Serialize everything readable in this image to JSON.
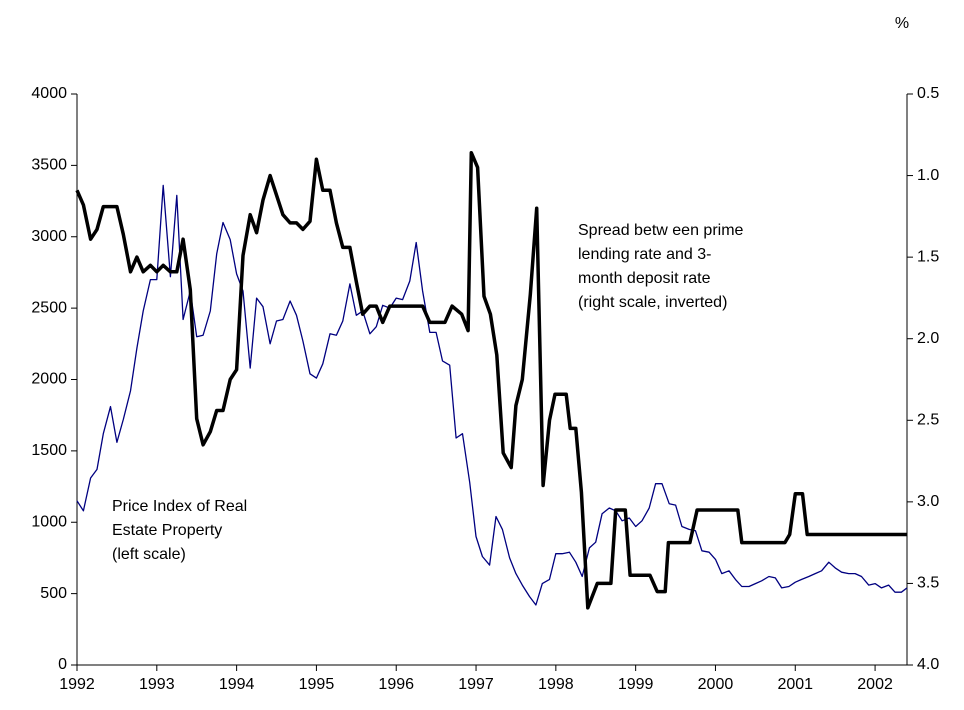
{
  "chart_data": {
    "type": "line",
    "y2_unit": "%",
    "annotations": [
      {
        "lines": [
          "Spread betw een prime",
          "lending rate and 3-",
          "month deposit rate",
          "(right scale, inverted)"
        ]
      },
      {
        "lines": [
          "Price Index of Real",
          "Estate Property",
          "(left scale)"
        ]
      }
    ],
    "xlim": [
      1992,
      2002.4
    ],
    "xticks": [
      1992,
      1993,
      1994,
      1995,
      1996,
      1997,
      1998,
      1999,
      2000,
      2001,
      2002
    ],
    "ylim": [
      0,
      4000
    ],
    "yticks": [
      0,
      500,
      1000,
      1500,
      2000,
      2500,
      3000,
      3500,
      4000
    ],
    "y2lim": [
      4.0,
      0.5
    ],
    "y2_inverted": true,
    "y2ticks": [
      {
        "value": 0.5,
        "label": "0.5"
      },
      {
        "value": 1.0,
        "label": "1.0"
      },
      {
        "value": 1.5,
        "label": "1.5"
      },
      {
        "value": 2.0,
        "label": "2.0"
      },
      {
        "value": 2.5,
        "label": "2.5"
      },
      {
        "value": 3.0,
        "label": "3.0"
      },
      {
        "value": 3.5,
        "label": "3.5"
      },
      {
        "value": 4.0,
        "label": "4.0"
      }
    ],
    "grid": false,
    "series": [
      {
        "color": "#000080",
        "width": 1.3,
        "x": [
          1992.0,
          1992.08,
          1992.17,
          1992.25,
          1992.33,
          1992.42,
          1992.5,
          1992.58,
          1992.67,
          1992.75,
          1992.83,
          1992.92,
          1993.0,
          1993.08,
          1993.17,
          1993.25,
          1993.33,
          1993.42,
          1993.5,
          1993.58,
          1993.67,
          1993.75,
          1993.83,
          1993.92,
          1994.0,
          1994.08,
          1994.17,
          1994.25,
          1994.33,
          1994.42,
          1994.5,
          1994.58,
          1994.67,
          1994.75,
          1994.83,
          1994.92,
          1995.0,
          1995.08,
          1995.17,
          1995.25,
          1995.33,
          1995.42,
          1995.5,
          1995.58,
          1995.67,
          1995.75,
          1995.83,
          1995.92,
          1996.0,
          1996.08,
          1996.17,
          1996.25,
          1996.33,
          1996.42,
          1996.5,
          1996.58,
          1996.67,
          1996.75,
          1996.83,
          1996.92,
          1997.0,
          1997.08,
          1997.17,
          1997.25,
          1997.33,
          1997.42,
          1997.5,
          1997.58,
          1997.67,
          1997.75,
          1997.83,
          1997.92,
          1998.0,
          1998.08,
          1998.17,
          1998.25,
          1998.33,
          1998.42,
          1998.5,
          1998.58,
          1998.67,
          1998.75,
          1998.83,
          1998.92,
          1999.0,
          1999.08,
          1999.17,
          1999.25,
          1999.33,
          1999.42,
          1999.5,
          1999.58,
          1999.67,
          1999.75,
          1999.83,
          1999.92,
          2000.0,
          2000.08,
          2000.17,
          2000.25,
          2000.33,
          2000.42,
          2000.5,
          2000.58,
          2000.67,
          2000.75,
          2000.83,
          2000.92,
          2001.0,
          2001.08,
          2001.17,
          2001.25,
          2001.33,
          2001.42,
          2001.5,
          2001.58,
          2001.67,
          2001.75,
          2001.83,
          2001.92,
          2002.0,
          2002.08,
          2002.17,
          2002.25,
          2002.33,
          2002.4
        ],
        "values": [
          1150,
          1080,
          1310,
          1370,
          1620,
          1810,
          1560,
          1720,
          1920,
          2220,
          2480,
          2700,
          2700,
          3360,
          2720,
          3290,
          2420,
          2620,
          2300,
          2310,
          2480,
          2880,
          3100,
          2980,
          2740,
          2620,
          2080,
          2570,
          2510,
          2250,
          2410,
          2420,
          2550,
          2450,
          2270,
          2040,
          2010,
          2110,
          2320,
          2310,
          2410,
          2670,
          2450,
          2480,
          2320,
          2370,
          2520,
          2500,
          2570,
          2560,
          2690,
          2960,
          2620,
          2330,
          2330,
          2130,
          2100,
          1590,
          1620,
          1280,
          900,
          760,
          700,
          1040,
          950,
          750,
          640,
          560,
          480,
          420,
          570,
          600,
          780,
          780,
          790,
          720,
          620,
          820,
          860,
          1060,
          1100,
          1080,
          1010,
          1030,
          970,
          1010,
          1100,
          1270,
          1270,
          1130,
          1120,
          970,
          950,
          940,
          800,
          790,
          740,
          640,
          660,
          600,
          550,
          550,
          570,
          590,
          620,
          610,
          540,
          550,
          580,
          600,
          620,
          640,
          660,
          720,
          680,
          650,
          640,
          640,
          620,
          560,
          570,
          540,
          560,
          510,
          510,
          540
        ]
      },
      {
        "color": "#000000",
        "width": 3.5,
        "axis": "y2",
        "x": [
          1992.0,
          1992.08,
          1992.17,
          1992.25,
          1992.33,
          1992.5,
          1992.58,
          1992.67,
          1992.75,
          1992.83,
          1992.92,
          1993.0,
          1993.08,
          1993.17,
          1993.25,
          1993.33,
          1993.42,
          1993.5,
          1993.58,
          1993.67,
          1993.75,
          1993.83,
          1993.92,
          1994.0,
          1994.08,
          1994.17,
          1994.25,
          1994.33,
          1994.42,
          1994.5,
          1994.58,
          1994.67,
          1994.75,
          1994.83,
          1994.92,
          1995.0,
          1995.08,
          1995.17,
          1995.25,
          1995.33,
          1995.42,
          1995.5,
          1995.58,
          1995.67,
          1995.75,
          1995.83,
          1995.92,
          1996.0,
          1996.33,
          1996.42,
          1996.61,
          1996.7,
          1996.82,
          1996.9,
          1996.94,
          1997.02,
          1997.1,
          1997.18,
          1997.26,
          1997.34,
          1997.44,
          1997.5,
          1997.58,
          1997.68,
          1997.76,
          1997.84,
          1997.92,
          1997.99,
          1998.13,
          1998.18,
          1998.25,
          1998.32,
          1998.4,
          1998.52,
          1998.69,
          1998.75,
          1998.87,
          1998.93,
          1999.18,
          1999.27,
          1999.37,
          1999.41,
          1999.68,
          1999.77,
          2000.28,
          2000.33,
          2000.87,
          2000.93,
          2001.0,
          2001.09,
          2001.15,
          2002.4
        ],
        "values": [
          1.09,
          1.18,
          1.39,
          1.33,
          1.19,
          1.19,
          1.36,
          1.59,
          1.5,
          1.59,
          1.55,
          1.59,
          1.55,
          1.59,
          1.59,
          1.39,
          1.7,
          2.49,
          2.65,
          2.57,
          2.44,
          2.44,
          2.25,
          2.19,
          1.49,
          1.24,
          1.35,
          1.15,
          1.0,
          1.12,
          1.24,
          1.29,
          1.29,
          1.33,
          1.28,
          0.9,
          1.09,
          1.09,
          1.29,
          1.44,
          1.44,
          1.65,
          1.85,
          1.8,
          1.8,
          1.9,
          1.8,
          1.8,
          1.8,
          1.9,
          1.9,
          1.8,
          1.85,
          1.95,
          0.86,
          0.95,
          1.74,
          1.85,
          2.1,
          2.7,
          2.79,
          2.41,
          2.25,
          1.73,
          1.2,
          2.9,
          2.5,
          2.34,
          2.34,
          2.55,
          2.55,
          2.94,
          3.65,
          3.5,
          3.5,
          3.05,
          3.05,
          3.45,
          3.45,
          3.55,
          3.55,
          3.25,
          3.25,
          3.05,
          3.05,
          3.25,
          3.25,
          3.2,
          2.95,
          2.95,
          3.2,
          3.2
        ]
      }
    ]
  }
}
